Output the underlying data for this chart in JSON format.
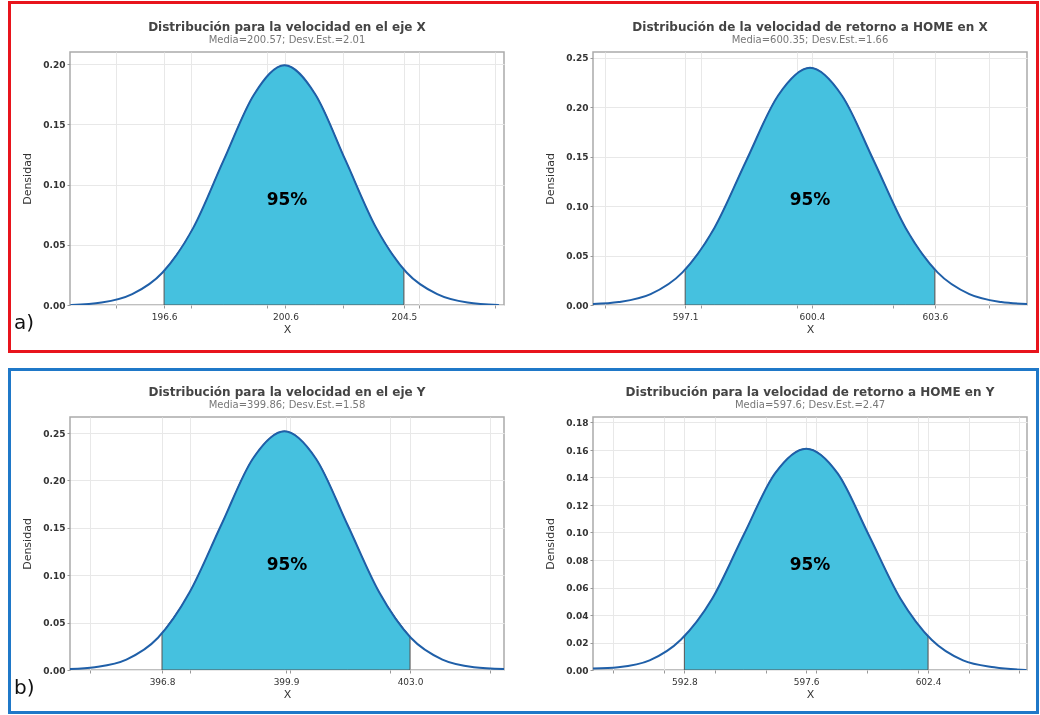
{
  "chart_data": [
    {
      "type": "line",
      "title": "Distribución para la velocidad en el eje X",
      "subtitle": "Media=200.57; Desv.Est.=2.01",
      "xlabel": "X",
      "ylabel": "Densidad",
      "grid": true,
      "xlim": [
        193.5,
        207.8
      ],
      "xticks": [
        {
          "value": 195,
          "label": null
        },
        196.6,
        {
          "value": 197.5,
          "label": null
        },
        {
          "value": 200,
          "label": null
        },
        200.6,
        {
          "value": 202.5,
          "label": null
        },
        204.5,
        {
          "value": 205,
          "label": null
        },
        {
          "value": 207.5,
          "label": null
        }
      ],
      "ylim": [
        0,
        0.21
      ],
      "yticks": [
        {
          "value": 0,
          "label": "0.00"
        },
        {
          "value": 0.05,
          "label": "0.05"
        },
        {
          "value": 0.1,
          "label": "0.10"
        },
        {
          "value": 0.15,
          "label": "0.15"
        },
        {
          "value": 0.2,
          "label": "0.20"
        }
      ],
      "annotations": [
        "95%",
        "a)"
      ],
      "series": [
        {
          "type": "area",
          "color": "#45c1df",
          "x": [
            196.6,
            197.56,
            198.56,
            199.57,
            200.57,
            201.58,
            202.58,
            203.59,
            204.5
          ],
          "values": [
            0.028,
            0.064,
            0.12,
            0.175,
            0.199,
            0.175,
            0.12,
            0.064,
            0.029
          ]
        },
        {
          "type": "line",
          "color": "#1f5fa8",
          "x": [
            193.54,
            194.54,
            195.55,
            196.55,
            197.56,
            198.56,
            199.57,
            200.57,
            201.58,
            202.58,
            203.59,
            204.59,
            205.6,
            206.6,
            207.61
          ],
          "values": [
            0,
            0.002,
            0.009,
            0.027,
            0.064,
            0.12,
            0.175,
            0.199,
            0.175,
            0.12,
            0.064,
            0.027,
            0.009,
            0.002,
            0
          ]
        }
      ]
    },
    {
      "type": "line",
      "title": "Distribución de la velocidad de retorno a HOME en X",
      "subtitle": "Media=600.35; Desv.Est.=1.66",
      "xlabel": "X",
      "ylabel": "Densidad",
      "grid": true,
      "xlim": [
        594.7,
        606.0
      ],
      "xticks": [
        {
          "value": 595,
          "label": null
        },
        597.1,
        {
          "value": 597.5,
          "label": null
        },
        {
          "value": 600,
          "label": null
        },
        600.4,
        {
          "value": 602.5,
          "label": null
        },
        603.6,
        {
          "value": 605,
          "label": null
        }
      ],
      "ylim": [
        0,
        0.256
      ],
      "yticks": [
        {
          "value": 0,
          "label": "0.00"
        },
        {
          "value": 0.05,
          "label": "0.05"
        },
        {
          "value": 0.1,
          "label": "0.10"
        },
        {
          "value": 0.15,
          "label": "0.15"
        },
        {
          "value": 0.2,
          "label": "0.20"
        },
        {
          "value": 0.25,
          "label": "0.25"
        }
      ],
      "annotations": [
        "95%"
      ],
      "series": [
        {
          "type": "area",
          "color": "#45c1df",
          "x": [
            597.1,
            597.86,
            598.69,
            599.52,
            600.35,
            601.18,
            602.01,
            602.84,
            603.6
          ],
          "values": [
            0.035,
            0.078,
            0.146,
            0.212,
            0.24,
            0.212,
            0.146,
            0.078,
            0.035
          ]
        },
        {
          "type": "line",
          "color": "#1f5fa8",
          "x": [
            594.7,
            595.37,
            596.2,
            597.03,
            597.86,
            598.69,
            599.52,
            600.35,
            601.18,
            602.01,
            602.84,
            603.67,
            604.5,
            605.33,
            606.0
          ],
          "values": [
            0.001,
            0.003,
            0.011,
            0.033,
            0.078,
            0.146,
            0.212,
            0.24,
            0.212,
            0.146,
            0.078,
            0.033,
            0.011,
            0.003,
            0.001
          ]
        }
      ]
    },
    {
      "type": "line",
      "title": "Distribución para la velocidad en el eje Y",
      "subtitle": "Media=399.86; Desv.Est.=1.58",
      "xlabel": "X",
      "ylabel": "Densidad",
      "grid": true,
      "xlim": [
        394.5,
        405.35
      ],
      "xticks": [
        {
          "value": 395,
          "label": null
        },
        396.8,
        {
          "value": 397.5,
          "label": null
        },
        399.9,
        {
          "value": 400,
          "label": null
        },
        {
          "value": 402.5,
          "label": null
        },
        {
          "value": 403,
          "label": "403.0"
        },
        {
          "value": 405,
          "label": null
        }
      ],
      "ylim": [
        0,
        0.267
      ],
      "yticks": [
        {
          "value": 0,
          "label": "0.00"
        },
        {
          "value": 0.05,
          "label": "0.05"
        },
        {
          "value": 0.1,
          "label": "0.10"
        },
        {
          "value": 0.15,
          "label": "0.15"
        },
        {
          "value": 0.2,
          "label": "0.20"
        },
        {
          "value": 0.25,
          "label": "0.25"
        }
      ],
      "annotations": [
        "95%",
        "b)"
      ],
      "series": [
        {
          "type": "area",
          "color": "#45c1df",
          "x": [
            396.8,
            397.49,
            398.28,
            399.07,
            399.86,
            400.65,
            401.44,
            402.23,
            403.0
          ],
          "values": [
            0.039,
            0.082,
            0.153,
            0.223,
            0.252,
            0.223,
            0.153,
            0.082,
            0.035
          ]
        },
        {
          "type": "line",
          "color": "#1f5fa8",
          "x": [
            394.5,
            395.12,
            395.91,
            396.7,
            397.49,
            398.28,
            399.07,
            399.86,
            400.65,
            401.44,
            402.23,
            403.02,
            403.81,
            404.6,
            405.35
          ],
          "values": [
            0.001,
            0.003,
            0.011,
            0.034,
            0.082,
            0.153,
            0.223,
            0.252,
            0.223,
            0.153,
            0.082,
            0.034,
            0.011,
            0.003,
            0.001
          ]
        }
      ]
    },
    {
      "type": "line",
      "title": "Distribución para la velocidad de retorno a HOME en Y",
      "subtitle": "Media=597.6; Desv.Est.=2.47",
      "xlabel": "X",
      "ylabel": "Densidad",
      "grid": true,
      "xlim": [
        589.2,
        606.3
      ],
      "xticks": [
        {
          "value": 590,
          "label": null
        },
        {
          "value": 592,
          "label": null
        },
        592.8,
        {
          "value": 594,
          "label": null
        },
        {
          "value": 596,
          "label": null
        },
        597.6,
        {
          "value": 598,
          "label": null
        },
        {
          "value": 600,
          "label": null
        },
        {
          "value": 602,
          "label": null
        },
        602.4,
        {
          "value": 604,
          "label": null
        },
        {
          "value": 606,
          "label": null
        }
      ],
      "ylim": [
        0,
        0.184
      ],
      "yticks": [
        {
          "value": 0,
          "label": "0.00"
        },
        {
          "value": 0.02,
          "label": "0.02"
        },
        {
          "value": 0.04,
          "label": "0.04"
        },
        {
          "value": 0.06,
          "label": "0.06"
        },
        {
          "value": 0.08,
          "label": "0.08"
        },
        {
          "value": 0.1,
          "label": "0.10"
        },
        {
          "value": 0.12,
          "label": "0.12"
        },
        {
          "value": 0.14,
          "label": "0.14"
        },
        {
          "value": 0.16,
          "label": "0.16"
        },
        {
          "value": 0.18,
          "label": "0.18"
        }
      ],
      "annotations": [
        "95%"
      ],
      "series": [
        {
          "type": "area",
          "color": "#45c1df",
          "x": [
            592.8,
            593.9,
            595.13,
            596.37,
            597.6,
            598.84,
            600.07,
            601.31,
            602.4
          ],
          "values": [
            0.024,
            0.052,
            0.098,
            0.143,
            0.161,
            0.143,
            0.098,
            0.052,
            0.024
          ]
        },
        {
          "type": "line",
          "color": "#1f5fa8",
          "x": [
            589.2,
            590.19,
            591.43,
            592.66,
            593.9,
            595.13,
            596.37,
            597.6,
            598.84,
            600.07,
            601.31,
            602.54,
            603.78,
            605.01,
            606.25
          ],
          "values": [
            0.001,
            0.002,
            0.007,
            0.022,
            0.052,
            0.098,
            0.143,
            0.161,
            0.143,
            0.098,
            0.052,
            0.022,
            0.007,
            0.002,
            0
          ]
        }
      ]
    }
  ]
}
